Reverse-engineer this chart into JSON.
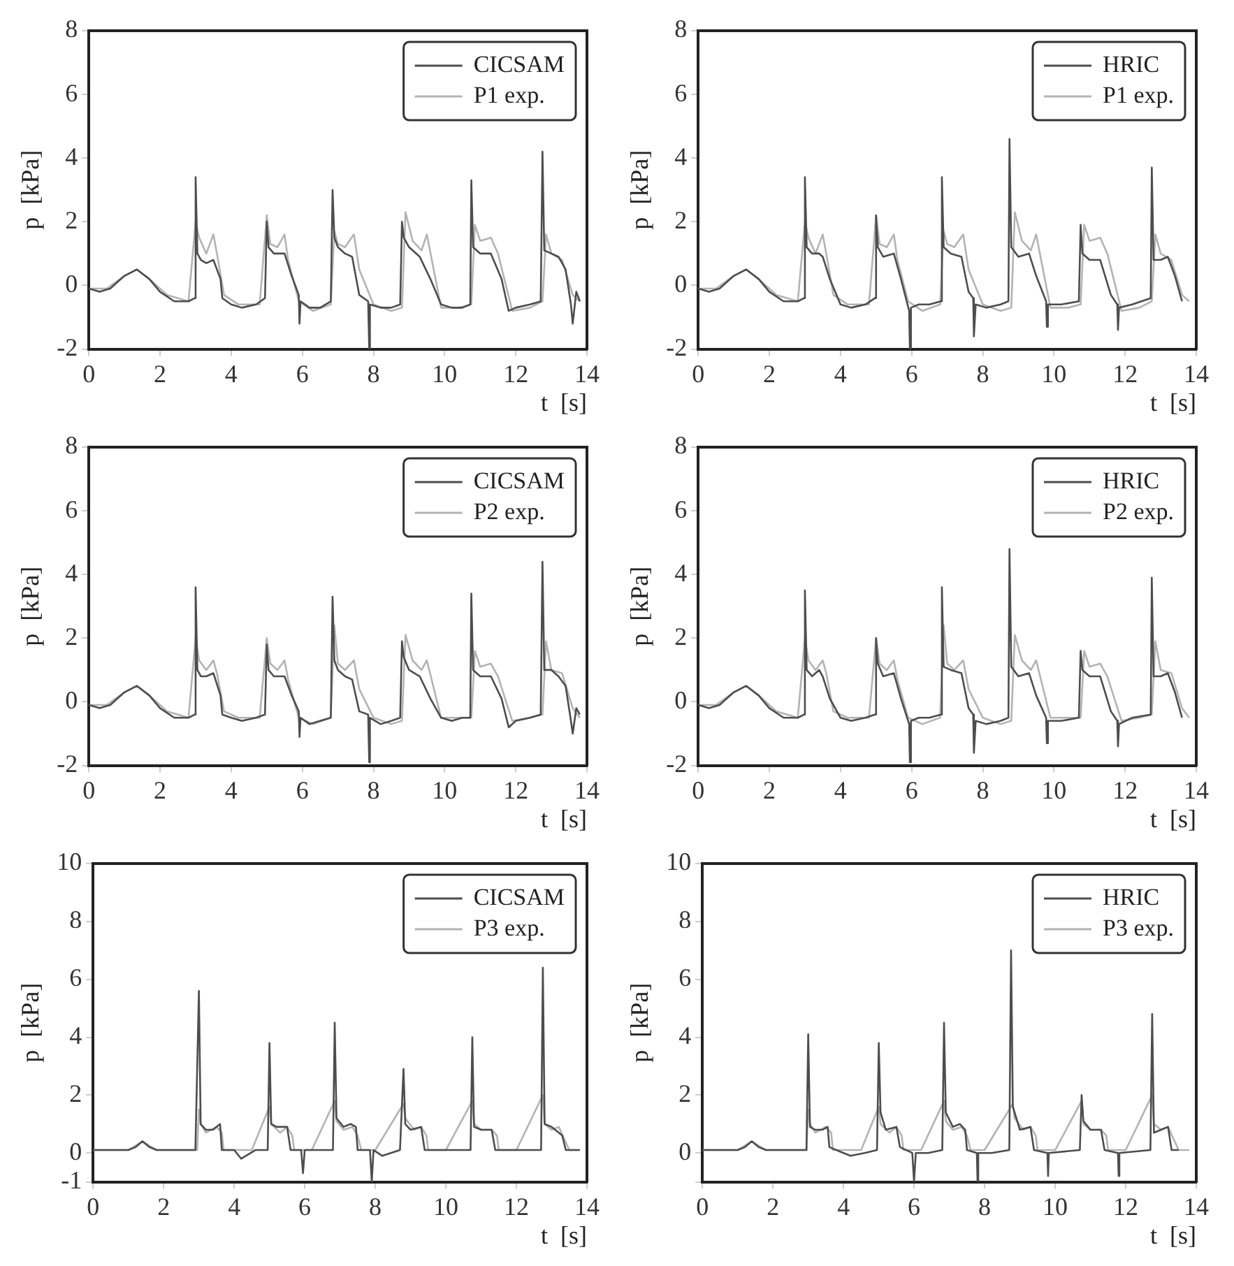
{
  "chart_data": [
    {
      "type": "line",
      "xlabel": "t  [s]",
      "ylabel": "p  [kPa]",
      "xlim": [
        0,
        14
      ],
      "xticks": [
        0,
        2,
        4,
        6,
        8,
        10,
        12,
        14
      ],
      "ylim": [
        -2,
        8
      ],
      "yticks": [
        -2,
        0,
        2,
        4,
        6,
        8
      ],
      "grid": false,
      "legend": "top right",
      "marker": "none",
      "series": [
        {
          "name": "CICSAM",
          "color": "#4d4d4d",
          "x": [
            0,
            0.3,
            0.6,
            1.0,
            1.35,
            1.7,
            2.0,
            2.4,
            2.8,
            2.98,
            3.0,
            3.05,
            3.15,
            3.3,
            3.5,
            3.7,
            3.75,
            4.0,
            4.3,
            4.7,
            4.95,
            5.0,
            5.05,
            5.2,
            5.5,
            5.7,
            5.9,
            5.92,
            5.95,
            6.2,
            6.5,
            6.8,
            6.85,
            6.9,
            7.0,
            7.2,
            7.4,
            7.6,
            7.85,
            7.88,
            7.9,
            8.2,
            8.5,
            8.75,
            8.8,
            8.85,
            9.0,
            9.3,
            9.6,
            9.9,
            10.2,
            10.5,
            10.72,
            10.75,
            10.8,
            11.0,
            11.3,
            11.6,
            11.8,
            12.0,
            12.4,
            12.7,
            12.75,
            12.8,
            13.0,
            13.2,
            13.4,
            13.55,
            13.6,
            13.7,
            13.8
          ],
          "values": [
            -0.1,
            -0.2,
            -0.1,
            0.3,
            0.5,
            0.2,
            -0.2,
            -0.5,
            -0.5,
            -0.4,
            3.4,
            1.0,
            0.8,
            0.7,
            0.8,
            0.2,
            -0.4,
            -0.6,
            -0.7,
            -0.6,
            -0.4,
            2.0,
            1.2,
            1.0,
            1.0,
            0.3,
            -0.3,
            -1.2,
            -0.5,
            -0.7,
            -0.7,
            -0.5,
            3.0,
            1.5,
            1.2,
            1.0,
            0.9,
            -0.3,
            -0.5,
            -2.0,
            -0.6,
            -0.7,
            -0.7,
            -0.6,
            2.0,
            1.5,
            1.2,
            0.9,
            0.2,
            -0.6,
            -0.7,
            -0.7,
            -0.6,
            3.3,
            1.2,
            1.0,
            1.0,
            0.2,
            -0.8,
            -0.7,
            -0.6,
            -0.5,
            4.2,
            1.1,
            1.0,
            0.9,
            0.5,
            -0.6,
            -1.2,
            -0.2,
            -0.5
          ]
        },
        {
          "name": "P1 exp.",
          "color": "#b3b3b3",
          "x": [
            0,
            0.5,
            1.0,
            1.35,
            1.7,
            2.2,
            2.8,
            3.0,
            3.1,
            3.3,
            3.5,
            3.6,
            3.8,
            4.2,
            4.8,
            5.0,
            5.1,
            5.3,
            5.5,
            5.6,
            5.9,
            6.3,
            6.8,
            6.9,
            7.0,
            7.2,
            7.45,
            7.6,
            8.0,
            8.5,
            8.8,
            8.9,
            9.1,
            9.35,
            9.5,
            9.9,
            10.4,
            10.75,
            10.85,
            11.0,
            11.3,
            11.5,
            11.9,
            12.4,
            12.75,
            12.85,
            13.0,
            13.3,
            13.6,
            13.8
          ],
          "values": [
            -0.1,
            -0.1,
            0.3,
            0.5,
            0.2,
            -0.3,
            -0.5,
            2.0,
            1.5,
            1.0,
            1.6,
            1.0,
            -0.3,
            -0.6,
            -0.6,
            2.2,
            1.3,
            1.2,
            1.6,
            0.8,
            -0.5,
            -0.8,
            -0.6,
            1.7,
            1.3,
            1.2,
            1.6,
            0.5,
            -0.6,
            -0.8,
            -0.7,
            2.3,
            1.4,
            1.1,
            1.6,
            -0.7,
            -0.7,
            -0.6,
            1.9,
            1.4,
            1.5,
            1.0,
            -0.8,
            -0.7,
            -0.5,
            1.6,
            1.0,
            0.8,
            -0.3,
            -0.5
          ]
        }
      ]
    },
    {
      "type": "line",
      "xlabel": "t  [s]",
      "ylabel": "p  [kPa]",
      "xlim": [
        0,
        14
      ],
      "xticks": [
        0,
        2,
        4,
        6,
        8,
        10,
        12,
        14
      ],
      "ylim": [
        -2,
        8
      ],
      "yticks": [
        -2,
        0,
        2,
        4,
        6,
        8
      ],
      "grid": false,
      "legend": "top right",
      "marker": "none",
      "series": [
        {
          "name": "HRIC",
          "color": "#4d4d4d",
          "x": [
            0,
            0.3,
            0.6,
            1.0,
            1.35,
            1.7,
            2.0,
            2.4,
            2.8,
            2.98,
            3.0,
            3.05,
            3.2,
            3.4,
            3.5,
            3.7,
            4.0,
            4.3,
            4.7,
            4.97,
            5.0,
            5.05,
            5.2,
            5.5,
            5.7,
            5.93,
            5.95,
            5.98,
            6.2,
            6.5,
            6.82,
            6.85,
            6.9,
            7.1,
            7.4,
            7.6,
            7.73,
            7.75,
            7.8,
            8.1,
            8.5,
            8.72,
            8.75,
            8.8,
            9.0,
            9.3,
            9.5,
            9.78,
            9.8,
            9.83,
            10.2,
            10.7,
            10.75,
            10.8,
            11.0,
            11.3,
            11.6,
            11.78,
            11.8,
            11.83,
            12.2,
            12.72,
            12.75,
            12.8,
            13.0,
            13.2,
            13.4,
            13.6
          ],
          "values": [
            -0.1,
            -0.2,
            -0.1,
            0.3,
            0.5,
            0.2,
            -0.2,
            -0.5,
            -0.5,
            -0.4,
            3.4,
            1.2,
            1.0,
            1.0,
            0.9,
            0.2,
            -0.6,
            -0.7,
            -0.6,
            -0.4,
            2.2,
            1.2,
            0.9,
            1.0,
            0.2,
            -0.8,
            -2.0,
            -0.7,
            -0.6,
            -0.6,
            -0.5,
            3.4,
            1.2,
            1.0,
            0.9,
            -0.2,
            -0.4,
            -1.6,
            -0.6,
            -0.7,
            -0.6,
            -0.5,
            4.6,
            1.2,
            0.9,
            1.0,
            0.3,
            -0.5,
            -1.3,
            -0.6,
            -0.6,
            -0.5,
            1.9,
            1.0,
            0.8,
            0.8,
            -0.3,
            -0.6,
            -1.4,
            -0.7,
            -0.6,
            -0.4,
            3.7,
            0.8,
            0.8,
            0.9,
            0.3,
            -0.5
          ]
        },
        {
          "name": "P1 exp.",
          "color": "#b3b3b3",
          "x": [
            0,
            0.5,
            1.0,
            1.35,
            1.7,
            2.2,
            2.8,
            3.0,
            3.1,
            3.3,
            3.5,
            3.6,
            3.8,
            4.2,
            4.8,
            5.0,
            5.1,
            5.3,
            5.5,
            5.6,
            5.9,
            6.3,
            6.8,
            6.9,
            7.0,
            7.2,
            7.45,
            7.6,
            8.0,
            8.5,
            8.8,
            8.9,
            9.1,
            9.35,
            9.5,
            9.9,
            10.4,
            10.75,
            10.85,
            11.0,
            11.3,
            11.5,
            11.9,
            12.4,
            12.75,
            12.85,
            13.0,
            13.3,
            13.6,
            13.8
          ],
          "values": [
            -0.1,
            -0.1,
            0.3,
            0.5,
            0.2,
            -0.3,
            -0.5,
            2.0,
            1.5,
            1.0,
            1.6,
            1.0,
            -0.3,
            -0.6,
            -0.6,
            2.2,
            1.3,
            1.2,
            1.6,
            0.8,
            -0.5,
            -0.8,
            -0.6,
            1.7,
            1.3,
            1.2,
            1.6,
            0.5,
            -0.6,
            -0.8,
            -0.7,
            2.3,
            1.4,
            1.1,
            1.6,
            -0.7,
            -0.7,
            -0.6,
            1.9,
            1.4,
            1.5,
            1.0,
            -0.8,
            -0.7,
            -0.5,
            1.6,
            1.0,
            0.8,
            -0.3,
            -0.5
          ]
        }
      ]
    },
    {
      "type": "line",
      "xlabel": "t  [s]",
      "ylabel": "p  [kPa]",
      "xlim": [
        0,
        14
      ],
      "xticks": [
        0,
        2,
        4,
        6,
        8,
        10,
        12,
        14
      ],
      "ylim": [
        -2,
        8
      ],
      "yticks": [
        -2,
        0,
        2,
        4,
        6,
        8
      ],
      "grid": false,
      "legend": "top right",
      "marker": "none",
      "series": [
        {
          "name": "CICSAM",
          "color": "#4d4d4d",
          "x": [
            0,
            0.3,
            0.6,
            1.0,
            1.35,
            1.7,
            2.0,
            2.4,
            2.8,
            2.98,
            3.0,
            3.05,
            3.15,
            3.3,
            3.5,
            3.7,
            3.75,
            4.0,
            4.3,
            4.7,
            4.95,
            5.0,
            5.05,
            5.2,
            5.5,
            5.7,
            5.9,
            5.92,
            5.95,
            6.2,
            6.5,
            6.8,
            6.85,
            6.9,
            7.0,
            7.2,
            7.4,
            7.6,
            7.85,
            7.88,
            7.9,
            8.2,
            8.5,
            8.75,
            8.8,
            8.85,
            9.0,
            9.3,
            9.6,
            9.9,
            10.2,
            10.5,
            10.72,
            10.75,
            10.8,
            11.0,
            11.3,
            11.6,
            11.8,
            12.0,
            12.4,
            12.7,
            12.75,
            12.8,
            13.0,
            13.2,
            13.4,
            13.55,
            13.6,
            13.7,
            13.8
          ],
          "values": [
            -0.1,
            -0.2,
            -0.1,
            0.3,
            0.5,
            0.2,
            -0.2,
            -0.5,
            -0.5,
            -0.4,
            3.6,
            1.0,
            0.8,
            0.8,
            0.9,
            0.2,
            -0.4,
            -0.5,
            -0.6,
            -0.5,
            -0.4,
            1.8,
            1.0,
            0.8,
            0.8,
            0.2,
            -0.3,
            -1.1,
            -0.5,
            -0.7,
            -0.6,
            -0.5,
            3.3,
            1.3,
            1.0,
            0.8,
            0.7,
            -0.3,
            -0.4,
            -1.9,
            -0.5,
            -0.7,
            -0.6,
            -0.5,
            1.9,
            1.4,
            1.0,
            0.8,
            0.1,
            -0.5,
            -0.6,
            -0.5,
            -0.5,
            3.4,
            1.0,
            0.8,
            0.8,
            0.1,
            -0.8,
            -0.6,
            -0.5,
            -0.4,
            4.4,
            1.0,
            1.0,
            0.8,
            0.5,
            -0.6,
            -1.0,
            -0.2,
            -0.4
          ]
        },
        {
          "name": "P2 exp.",
          "color": "#b3b3b3",
          "x": [
            0,
            0.5,
            1.0,
            1.35,
            1.7,
            2.2,
            2.8,
            3.0,
            3.1,
            3.3,
            3.5,
            3.6,
            3.8,
            4.2,
            4.8,
            5.0,
            5.1,
            5.3,
            5.5,
            5.6,
            5.9,
            6.3,
            6.8,
            6.9,
            7.0,
            7.2,
            7.45,
            7.6,
            8.0,
            8.5,
            8.8,
            8.9,
            9.1,
            9.35,
            9.5,
            9.9,
            10.4,
            10.75,
            10.85,
            11.0,
            11.3,
            11.5,
            11.9,
            12.4,
            12.75,
            12.85,
            13.0,
            13.3,
            13.6,
            13.8
          ],
          "values": [
            -0.1,
            -0.1,
            0.3,
            0.5,
            0.2,
            -0.3,
            -0.5,
            2.0,
            1.3,
            1.0,
            1.3,
            0.9,
            -0.3,
            -0.5,
            -0.5,
            2.0,
            1.2,
            1.0,
            1.3,
            0.7,
            -0.5,
            -0.7,
            -0.5,
            2.4,
            1.2,
            1.0,
            1.3,
            0.4,
            -0.5,
            -0.7,
            -0.6,
            2.1,
            1.3,
            1.0,
            1.3,
            -0.5,
            -0.5,
            -0.5,
            1.6,
            1.1,
            1.2,
            0.8,
            -0.6,
            -0.5,
            -0.4,
            1.9,
            1.0,
            0.9,
            -0.2,
            -0.5
          ]
        }
      ]
    },
    {
      "type": "line",
      "xlabel": "t  [s]",
      "ylabel": "p  [kPa]",
      "xlim": [
        0,
        14
      ],
      "xticks": [
        0,
        2,
        4,
        6,
        8,
        10,
        12,
        14
      ],
      "ylim": [
        -2,
        8
      ],
      "yticks": [
        -2,
        0,
        2,
        4,
        6,
        8
      ],
      "grid": false,
      "legend": "top right",
      "marker": "none",
      "series": [
        {
          "name": "HRIC",
          "color": "#4d4d4d",
          "x": [
            0,
            0.3,
            0.6,
            1.0,
            1.35,
            1.7,
            2.0,
            2.4,
            2.8,
            2.98,
            3.0,
            3.05,
            3.2,
            3.4,
            3.5,
            3.7,
            4.0,
            4.3,
            4.7,
            4.97,
            5.0,
            5.05,
            5.2,
            5.5,
            5.7,
            5.93,
            5.95,
            5.98,
            6.2,
            6.5,
            6.82,
            6.85,
            6.9,
            7.1,
            7.4,
            7.6,
            7.73,
            7.75,
            7.8,
            8.1,
            8.5,
            8.72,
            8.75,
            8.8,
            9.0,
            9.3,
            9.5,
            9.78,
            9.8,
            9.83,
            10.2,
            10.7,
            10.75,
            10.8,
            11.0,
            11.3,
            11.6,
            11.78,
            11.8,
            11.83,
            12.2,
            12.72,
            12.75,
            12.8,
            13.0,
            13.2,
            13.4,
            13.6
          ],
          "values": [
            -0.1,
            -0.2,
            -0.1,
            0.3,
            0.5,
            0.2,
            -0.2,
            -0.5,
            -0.5,
            -0.4,
            3.5,
            1.0,
            0.8,
            1.0,
            0.8,
            0.1,
            -0.5,
            -0.6,
            -0.5,
            -0.4,
            2.0,
            1.2,
            0.8,
            0.9,
            0.1,
            -0.7,
            -1.9,
            -0.6,
            -0.5,
            -0.5,
            -0.4,
            3.6,
            1.1,
            1.0,
            0.9,
            -0.2,
            -0.4,
            -1.6,
            -0.6,
            -0.7,
            -0.6,
            -0.5,
            4.8,
            1.1,
            0.8,
            0.9,
            0.2,
            -0.5,
            -1.3,
            -0.6,
            -0.6,
            -0.5,
            1.6,
            1.0,
            0.8,
            0.8,
            -0.3,
            -0.6,
            -1.4,
            -0.7,
            -0.5,
            -0.4,
            3.9,
            0.8,
            0.8,
            0.9,
            0.3,
            -0.5
          ]
        },
        {
          "name": "P2 exp.",
          "color": "#b3b3b3",
          "x": [
            0,
            0.5,
            1.0,
            1.35,
            1.7,
            2.2,
            2.8,
            3.0,
            3.1,
            3.3,
            3.5,
            3.6,
            3.8,
            4.2,
            4.8,
            5.0,
            5.1,
            5.3,
            5.5,
            5.6,
            5.9,
            6.3,
            6.8,
            6.9,
            7.0,
            7.2,
            7.45,
            7.6,
            8.0,
            8.5,
            8.8,
            8.9,
            9.1,
            9.35,
            9.5,
            9.9,
            10.4,
            10.75,
            10.85,
            11.0,
            11.3,
            11.5,
            11.9,
            12.4,
            12.75,
            12.85,
            13.0,
            13.3,
            13.6,
            13.8
          ],
          "values": [
            -0.1,
            -0.1,
            0.3,
            0.5,
            0.2,
            -0.3,
            -0.5,
            2.0,
            1.3,
            1.0,
            1.3,
            0.9,
            -0.3,
            -0.5,
            -0.5,
            2.0,
            1.2,
            1.0,
            1.3,
            0.7,
            -0.5,
            -0.7,
            -0.5,
            2.4,
            1.2,
            1.0,
            1.3,
            0.4,
            -0.5,
            -0.7,
            -0.6,
            2.1,
            1.3,
            1.0,
            1.3,
            -0.5,
            -0.5,
            -0.5,
            1.6,
            1.1,
            1.2,
            0.8,
            -0.6,
            -0.5,
            -0.4,
            1.9,
            1.0,
            0.9,
            -0.2,
            -0.5
          ]
        }
      ]
    },
    {
      "type": "line",
      "xlabel": "t  [s]",
      "ylabel": "p  [kPa]",
      "xlim": [
        0,
        14
      ],
      "xticks": [
        0,
        2,
        4,
        6,
        8,
        10,
        12,
        14
      ],
      "ylim": [
        -1,
        10
      ],
      "yticks": [
        -1,
        0,
        2,
        4,
        6,
        8,
        10
      ],
      "grid": false,
      "legend": "top right",
      "marker": "none",
      "series": [
        {
          "name": "CICSAM",
          "color": "#4d4d4d",
          "x": [
            0,
            1.0,
            1.2,
            1.4,
            1.6,
            1.8,
            2.9,
            3.0,
            3.05,
            3.2,
            3.4,
            3.6,
            3.65,
            4.0,
            4.2,
            4.6,
            4.95,
            5.0,
            5.05,
            5.2,
            5.5,
            5.6,
            5.9,
            5.95,
            6.0,
            6.4,
            6.8,
            6.85,
            6.9,
            7.1,
            7.3,
            7.45,
            7.5,
            7.85,
            7.9,
            7.95,
            8.2,
            8.7,
            8.8,
            8.85,
            9.0,
            9.3,
            9.4,
            9.8,
            10.2,
            10.7,
            10.75,
            10.8,
            11.0,
            11.3,
            11.4,
            11.8,
            12.2,
            12.7,
            12.75,
            12.8,
            13.0,
            13.3,
            13.4,
            13.8
          ],
          "values": [
            0.1,
            0.1,
            0.2,
            0.4,
            0.2,
            0.1,
            0.1,
            5.6,
            1.0,
            0.8,
            0.8,
            1.0,
            0.1,
            0.1,
            -0.2,
            0.1,
            0.1,
            3.8,
            1.0,
            0.9,
            0.9,
            0.1,
            0.1,
            -0.7,
            0.1,
            0.1,
            0.1,
            4.5,
            1.2,
            0.9,
            1.0,
            0.9,
            0.1,
            0.1,
            -1.0,
            0.1,
            -0.1,
            0.1,
            2.9,
            1.0,
            0.8,
            0.9,
            0.1,
            0.1,
            0.1,
            0.1,
            4.0,
            0.9,
            0.8,
            0.8,
            0.1,
            0.1,
            0.1,
            0.1,
            6.4,
            1.0,
            0.9,
            0.6,
            0.1,
            0.1
          ]
        },
        {
          "name": "P3 exp.",
          "color": "#b3b3b3",
          "x": [
            0,
            1.0,
            1.4,
            1.8,
            2.95,
            3.0,
            3.05,
            3.2,
            3.5,
            3.65,
            3.7,
            4.1,
            4.5,
            5.0,
            5.05,
            5.3,
            5.5,
            5.65,
            5.7,
            6.2,
            6.85,
            6.9,
            7.1,
            7.35,
            7.5,
            7.6,
            8.0,
            8.8,
            8.85,
            9.1,
            9.3,
            9.45,
            9.5,
            10.0,
            10.75,
            10.8,
            11.0,
            11.3,
            11.45,
            11.5,
            12.0,
            12.75,
            12.8,
            13.0,
            13.2,
            13.5,
            13.8
          ],
          "values": [
            0.1,
            0.1,
            0.4,
            0.1,
            0.1,
            1.5,
            1.0,
            0.7,
            0.9,
            0.7,
            0.1,
            0.1,
            0.1,
            1.6,
            1.0,
            0.7,
            0.9,
            0.6,
            0.1,
            0.1,
            1.8,
            1.1,
            0.8,
            0.9,
            0.6,
            0.1,
            0.1,
            1.7,
            1.2,
            0.8,
            0.9,
            0.6,
            0.1,
            0.1,
            1.8,
            1.0,
            0.8,
            0.8,
            0.6,
            0.1,
            0.1,
            2.0,
            1.0,
            0.8,
            0.9,
            0.1,
            0.1
          ]
        }
      ]
    },
    {
      "type": "line",
      "xlabel": "t  [s]",
      "ylabel": "p  [kPa]",
      "xlim": [
        0,
        14
      ],
      "xticks": [
        0,
        2,
        4,
        6,
        8,
        10,
        12,
        14
      ],
      "ylim": [
        -1,
        10
      ],
      "yticks": [
        {
          "value": -1,
          "label": null
        },
        0,
        2,
        4,
        6,
        8,
        10
      ],
      "grid": false,
      "legend": "top right",
      "marker": "none",
      "series": [
        {
          "name": "HRIC",
          "color": "#4d4d4d",
          "x": [
            0,
            1.0,
            1.2,
            1.4,
            1.6,
            1.8,
            2.95,
            3.0,
            3.05,
            3.2,
            3.4,
            3.55,
            3.6,
            4.0,
            4.2,
            4.6,
            4.95,
            5.0,
            5.05,
            5.2,
            5.5,
            5.6,
            5.95,
            6.0,
            6.05,
            6.4,
            6.8,
            6.85,
            6.9,
            7.1,
            7.3,
            7.45,
            7.5,
            7.78,
            7.8,
            7.82,
            8.2,
            8.7,
            8.75,
            8.8,
            9.0,
            9.3,
            9.4,
            9.78,
            9.8,
            9.82,
            10.7,
            10.75,
            10.8,
            11.0,
            11.3,
            11.4,
            11.78,
            11.8,
            11.82,
            12.7,
            12.75,
            12.8,
            13.0,
            13.2,
            13.3,
            13.5
          ],
          "values": [
            0.1,
            0.1,
            0.2,
            0.4,
            0.2,
            0.1,
            0.1,
            4.1,
            0.9,
            0.8,
            0.8,
            0.9,
            0.2,
            0.0,
            -0.1,
            0.0,
            0.1,
            3.8,
            1.4,
            0.8,
            0.9,
            0.2,
            0.0,
            -1.0,
            0.0,
            0.0,
            0.1,
            4.5,
            1.4,
            0.9,
            1.0,
            0.8,
            0.1,
            0.0,
            -1.0,
            0.0,
            0.0,
            0.1,
            7.0,
            1.6,
            0.8,
            0.9,
            0.1,
            0.0,
            -0.8,
            0.0,
            0.1,
            2.0,
            1.1,
            0.8,
            0.8,
            0.1,
            0.0,
            -0.8,
            0.0,
            0.1,
            4.8,
            0.7,
            0.8,
            0.9,
            0.1,
            0.1
          ]
        },
        {
          "name": "P3 exp.",
          "color": "#b3b3b3",
          "x": [
            0,
            1.0,
            1.4,
            1.8,
            2.95,
            3.0,
            3.05,
            3.2,
            3.5,
            3.65,
            3.7,
            4.1,
            4.5,
            5.0,
            5.05,
            5.3,
            5.5,
            5.65,
            5.7,
            6.2,
            6.85,
            6.9,
            7.1,
            7.35,
            7.5,
            7.6,
            8.0,
            8.8,
            8.85,
            9.1,
            9.3,
            9.45,
            9.5,
            10.0,
            10.75,
            10.8,
            11.0,
            11.3,
            11.45,
            11.5,
            12.0,
            12.75,
            12.8,
            13.0,
            13.2,
            13.5,
            13.8
          ],
          "values": [
            0.1,
            0.1,
            0.4,
            0.1,
            0.1,
            1.5,
            1.0,
            0.7,
            0.9,
            0.7,
            0.1,
            0.1,
            0.1,
            1.6,
            1.0,
            0.7,
            0.9,
            0.6,
            0.1,
            0.1,
            1.8,
            1.1,
            0.8,
            0.9,
            0.6,
            0.1,
            0.1,
            1.7,
            1.2,
            0.8,
            0.9,
            0.6,
            0.1,
            0.1,
            1.8,
            1.0,
            0.8,
            0.8,
            0.6,
            0.1,
            0.1,
            2.0,
            1.0,
            0.8,
            0.9,
            0.1,
            0.1
          ]
        }
      ]
    }
  ]
}
